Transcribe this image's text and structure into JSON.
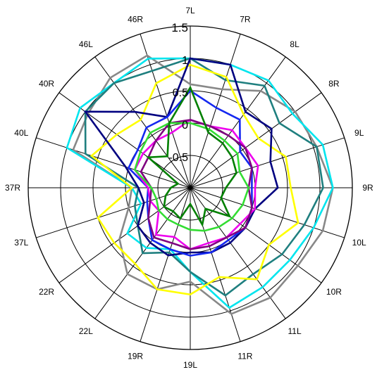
{
  "chart_data": {
    "type": "radar",
    "title": "",
    "categories": [
      "7L",
      "7R",
      "8L",
      "8R",
      "9L",
      "9R",
      "10L",
      "10R",
      "11L",
      "11R",
      "19L",
      "19R",
      "22L",
      "22R",
      "37L",
      "37R",
      "40L",
      "40R",
      "46L",
      "46R"
    ],
    "radial_tick_labels": [
      "-0.5",
      "0",
      "0.5",
      "1",
      "1.5"
    ],
    "rlim": [
      -1,
      1.5
    ],
    "grid": true,
    "legend": "none",
    "series": [
      {
        "color": "#888888",
        "values": [
          0.6,
          0.6,
          0.85,
          1.0,
          1.05,
          1.2,
          1.15,
          1.05,
          1.1,
          1.05,
          0.45,
          0.65,
          0.65,
          0.35,
          0.0,
          -0.1,
          0.9,
          0.95,
          1.1,
          1.15
        ]
      },
      {
        "color": "#00E5EE",
        "values": [
          1.0,
          1.0,
          1.05,
          0.95,
          1.15,
          1.2,
          1.0,
          0.9,
          0.9,
          0.95,
          0.3,
          0.0,
          0.15,
          0.2,
          -0.2,
          -0.1,
          1.0,
          1.1,
          1.0,
          1.1
        ]
      },
      {
        "color": "#1F7F7F",
        "values": [
          1.0,
          0.75,
          0.95,
          0.7,
          1.05,
          1.05,
          0.85,
          0.75,
          0.65,
          0.75,
          0.3,
          0.05,
          0.25,
          0.0,
          -0.1,
          -0.2,
          0.7,
          1.0,
          1.0,
          0.9
        ]
      },
      {
        "color": "#FFFF00",
        "values": [
          0.9,
          0.8,
          0.4,
          0.3,
          0.55,
          0.55,
          0.75,
          0.5,
          0.75,
          0.45,
          0.65,
          0.65,
          0.45,
          0.45,
          0.5,
          -0.1,
          0.6,
          0.4,
          0.3,
          0.7
        ]
      },
      {
        "color": "#000080",
        "values": [
          1.0,
          1.0,
          0.45,
          0.55,
          0.3,
          0.35,
          0.05,
          0.05,
          0.05,
          0.05,
          0.0,
          0.1,
          0.05,
          0.0,
          -0.25,
          -0.2,
          0.05,
          1.0,
          0.45,
          0.15
        ]
      },
      {
        "color": "#1428F0",
        "values": [
          0.5,
          0.3,
          0.3,
          -0.05,
          0.0,
          -0.05,
          0.0,
          0.05,
          0.0,
          0.05,
          0.05,
          0.0,
          0.0,
          -0.2,
          -0.3,
          -0.35,
          0.0,
          0.0,
          0.15,
          0.15
        ]
      },
      {
        "color": "#EE00EE",
        "values": [
          0.05,
          0.0,
          0.1,
          0.05,
          0.1,
          0.0,
          0.05,
          -0.05,
          -0.05,
          -0.1,
          -0.05,
          -0.2,
          -0.1,
          -0.4,
          -0.35,
          -0.35,
          -0.1,
          -0.1,
          -0.1,
          -0.1
        ]
      },
      {
        "color": "#800080",
        "values": [
          0.05,
          0.0,
          0.0,
          0.05,
          0.0,
          -0.1,
          0.0,
          0.05,
          -0.05,
          -0.05,
          -0.05,
          -0.1,
          -0.05,
          -0.2,
          -0.35,
          -0.4,
          -0.2,
          -0.2,
          -0.1,
          0.05
        ]
      },
      {
        "color": "#33DD33",
        "values": [
          0.0,
          -0.05,
          -0.1,
          -0.1,
          -0.2,
          -0.1,
          -0.15,
          -0.2,
          -0.25,
          -0.3,
          -0.35,
          -0.4,
          -0.4,
          -0.4,
          -0.45,
          -0.4,
          -0.1,
          -0.05,
          0.05,
          0.05
        ]
      },
      {
        "color": "#008000",
        "values": [
          0.55,
          -0.1,
          -0.15,
          -0.2,
          -0.25,
          -0.45,
          -0.5,
          -0.25,
          -0.6,
          -0.4,
          -0.75,
          -0.5,
          -0.55,
          -0.5,
          -0.6,
          -0.7,
          -0.8,
          -0.2,
          -0.4,
          0.05
        ]
      }
    ]
  }
}
